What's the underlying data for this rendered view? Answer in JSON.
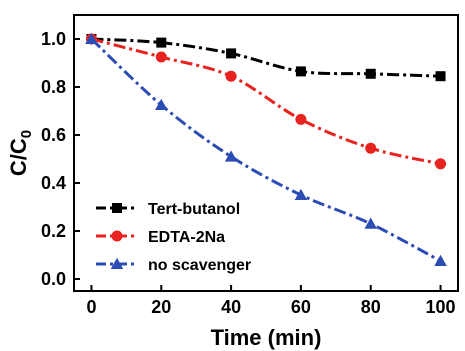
{
  "chart_data": {
    "type": "line",
    "title": "",
    "xlabel": "Time (min)",
    "ylabel": "C/C",
    "ylabel_subscript": "0",
    "xlim": [
      -5,
      105
    ],
    "ylim": [
      -0.05,
      1.1
    ],
    "x_ticks": [
      0,
      20,
      40,
      60,
      80,
      100
    ],
    "x_tick_labels": [
      "0",
      "20",
      "40",
      "60",
      "80",
      "100"
    ],
    "y_ticks": [
      0.0,
      0.2,
      0.4,
      0.6,
      0.8,
      1.0
    ],
    "y_tick_labels": [
      "0.0",
      "0.2",
      "0.4",
      "0.6",
      "0.8",
      "1.0"
    ],
    "grid": false,
    "legend_position": "bottom-left",
    "x": [
      0,
      20,
      40,
      60,
      80,
      100
    ],
    "series": [
      {
        "name": "Tert-butanol",
        "color": "#000000",
        "marker": "square",
        "values": [
          1.0,
          0.985,
          0.94,
          0.865,
          0.855,
          0.845
        ]
      },
      {
        "name": "EDTA-2Na",
        "color": "#e8221f",
        "marker": "circle",
        "values": [
          1.0,
          0.925,
          0.845,
          0.665,
          0.545,
          0.48
        ]
      },
      {
        "name": "no scavenger",
        "color": "#2b4bb5",
        "marker": "triangle",
        "values": [
          1.0,
          0.725,
          0.51,
          0.35,
          0.23,
          0.075
        ]
      }
    ]
  }
}
